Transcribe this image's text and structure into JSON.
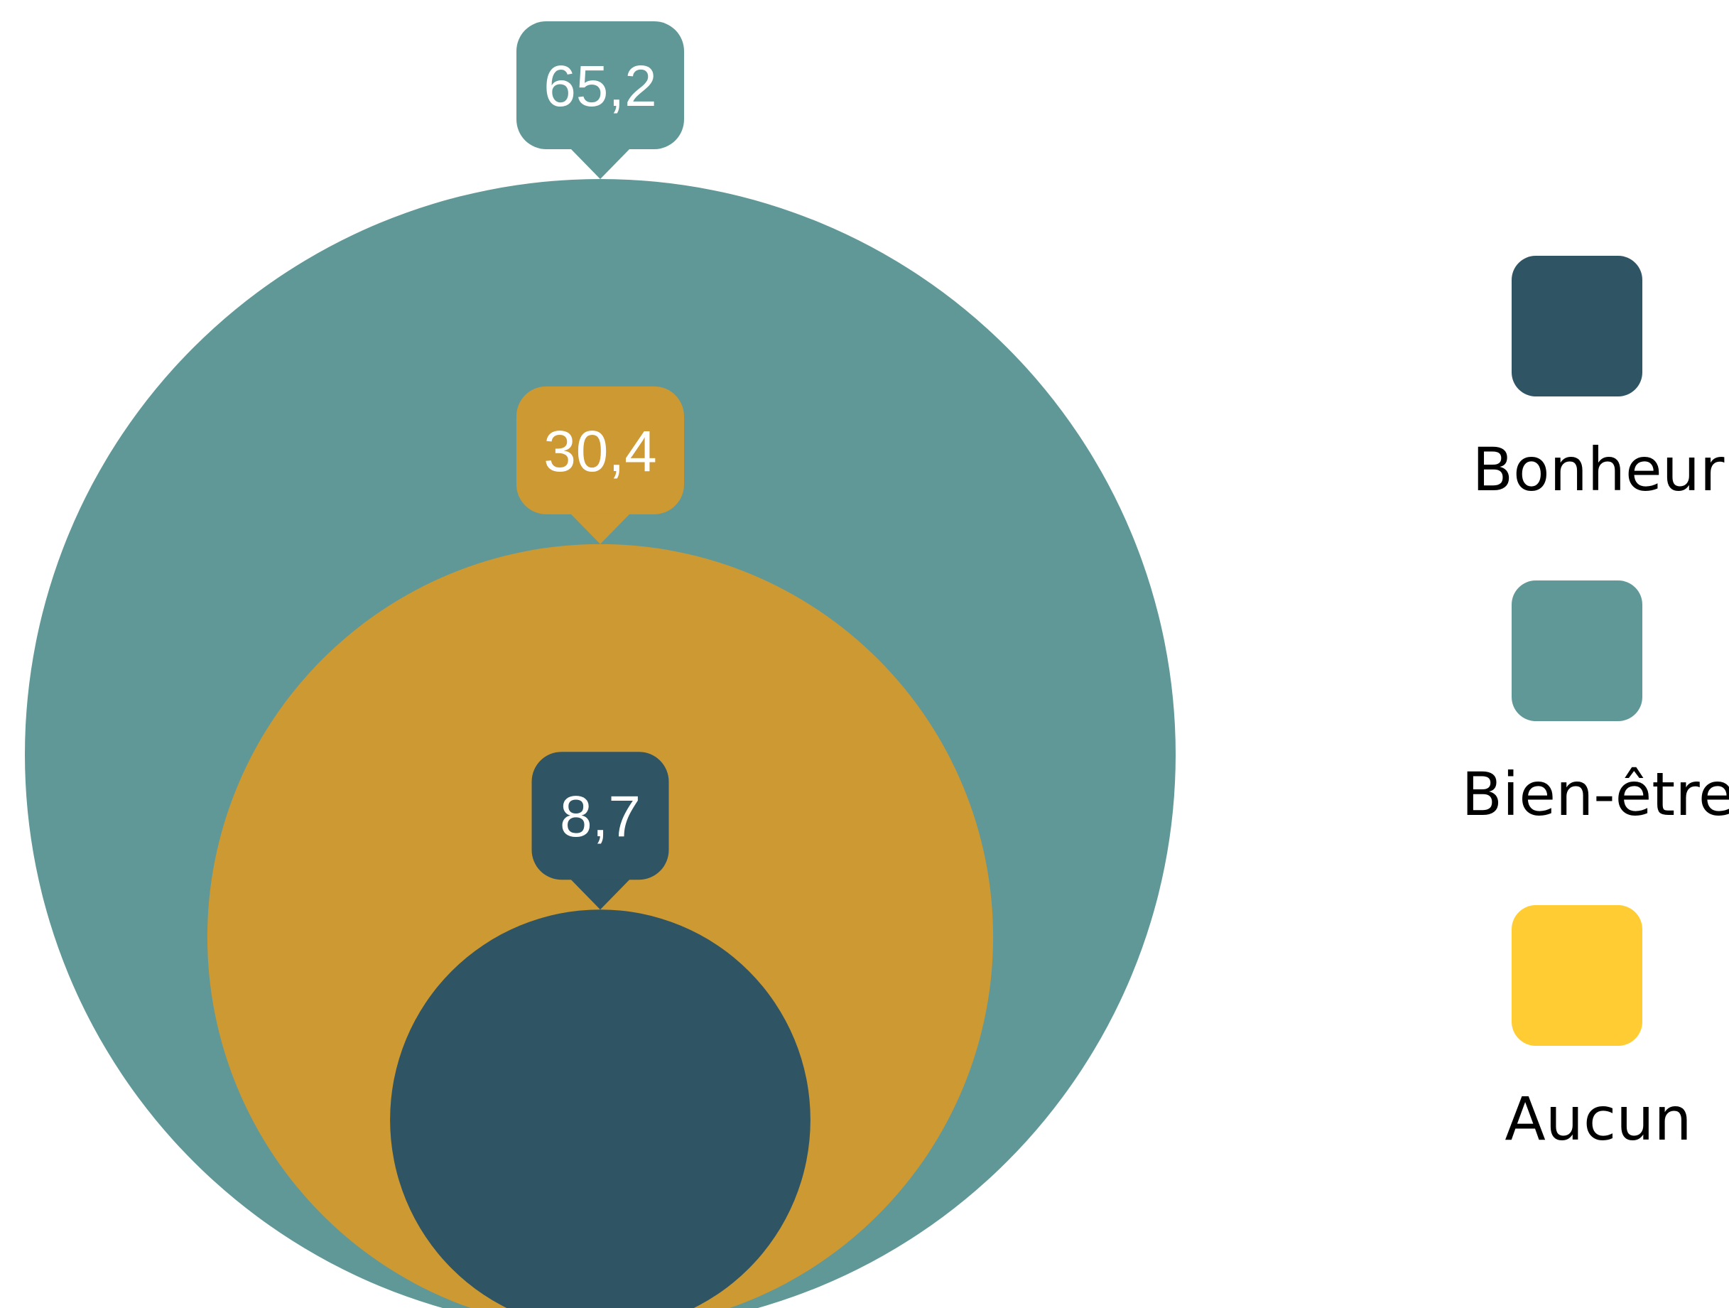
{
  "chart_data": {
    "type": "bubble",
    "title": "",
    "series": [
      {
        "name": "Bien-être",
        "value": 65.2,
        "label": "65,2",
        "color": "#609898"
      },
      {
        "name": "Aucun",
        "value": 30.4,
        "label": "30,4",
        "color": "#CC9933"
      },
      {
        "name": "Bonheur",
        "value": 8.7,
        "label": "8,7",
        "color": "#2F5464"
      }
    ],
    "legend": {
      "position": "right",
      "items": [
        {
          "label": "Bonheur",
          "color": "#2F5464"
        },
        {
          "label": "Bien-être",
          "color": "#609898"
        },
        {
          "label": "Aucun",
          "color": "#FFCC33"
        }
      ]
    }
  }
}
